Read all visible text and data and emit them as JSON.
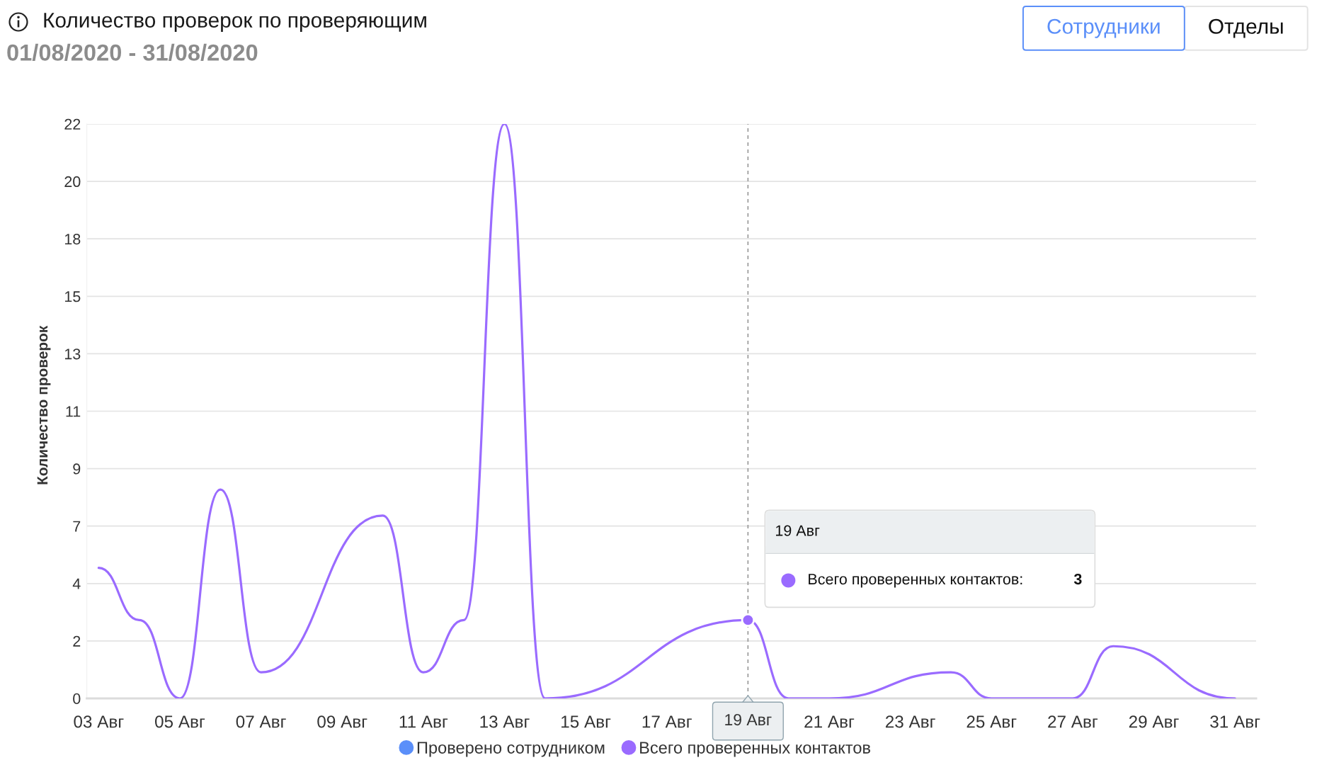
{
  "chart_data": {
    "type": "line",
    "title": "Количество проверок по проверяющим",
    "subtitle": "01/08/2020 - 31/08/2020",
    "ylabel": "Количество проверок",
    "x": [
      "2020-08-03",
      "2020-08-04",
      "2020-08-05",
      "2020-08-06",
      "2020-08-07",
      "2020-08-10",
      "2020-08-11",
      "2020-08-12",
      "2020-08-13",
      "2020-08-14",
      "2020-08-19",
      "2020-08-20",
      "2020-08-21",
      "2020-08-24",
      "2020-08-25",
      "2020-08-27",
      "2020-08-28",
      "2020-08-31"
    ],
    "series": [
      {
        "name": "Проверено сотрудником",
        "color": "#5b8ff9",
        "values": [
          null,
          null,
          null,
          null,
          null,
          null,
          null,
          null,
          null,
          null,
          null,
          null,
          null,
          null,
          null,
          null,
          null,
          null
        ]
      },
      {
        "name": "Всего проверенных контактов",
        "color": "#9a6bff",
        "values": [
          5,
          3,
          0,
          8,
          1,
          7,
          1,
          3,
          22,
          0,
          3,
          0,
          0,
          1,
          0,
          0,
          2,
          0
        ]
      }
    ],
    "xlim": [
      "2020-08-02T17:00",
      "2020-08-31T12:30"
    ],
    "xticks": [
      {
        "value": "2020-08-03",
        "label": "03 Авг"
      },
      {
        "value": "2020-08-05",
        "label": "05 Авг"
      },
      {
        "value": "2020-08-07",
        "label": "07 Авг"
      },
      {
        "value": "2020-08-09",
        "label": "09 Авг"
      },
      {
        "value": "2020-08-11",
        "label": "11 Авг"
      },
      {
        "value": "2020-08-13",
        "label": "13 Авг"
      },
      {
        "value": "2020-08-15",
        "label": "15 Авг"
      },
      {
        "value": "2020-08-17",
        "label": "17 Авг"
      },
      {
        "value": "2020-08-21",
        "label": "21 Авг"
      },
      {
        "value": "2020-08-23",
        "label": "23 Авг"
      },
      {
        "value": "2020-08-25",
        "label": "25 Авг"
      },
      {
        "value": "2020-08-27",
        "label": "27 Авг"
      },
      {
        "value": "2020-08-29",
        "label": "29 Авг"
      },
      {
        "value": "2020-08-31",
        "label": "31 Авг"
      }
    ],
    "ylim": [
      0,
      22
    ],
    "yticks": [
      0,
      {
        "value": 2.2,
        "label": "2"
      },
      {
        "value": 4.4,
        "label": "4"
      },
      {
        "value": 6.6,
        "label": "7"
      },
      {
        "value": 8.8,
        "label": "9"
      },
      11,
      {
        "value": 13.2,
        "label": "13"
      },
      {
        "value": 15.4,
        "label": "15"
      },
      {
        "value": 17.6,
        "label": "18"
      },
      {
        "value": 19.8,
        "label": "20"
      },
      22
    ],
    "grid": "y",
    "legend": "bottom",
    "ref_lines": [
      {
        "axis": "x",
        "value": "2020-08-19",
        "label": "19 Авг",
        "line_style": "dashed",
        "color": "#999999"
      }
    ],
    "annotations": [
      "19 Авг",
      "Всего проверенных контактов:",
      "3",
      "Сотрудники",
      "Отделы"
    ]
  }
}
